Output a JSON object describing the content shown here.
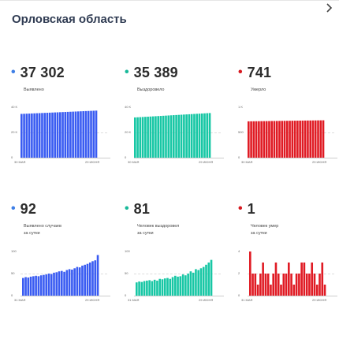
{
  "header": {
    "title": "Орловская область"
  },
  "colors": {
    "blue": "#3a5cf2",
    "teal": "#18c7a5",
    "red": "#e01b24",
    "dot_blue": "#3f7fe6",
    "dot_teal": "#19b99a",
    "dot_red": "#d71920"
  },
  "cards": [
    {
      "value": "37 302",
      "label": "Выявлено",
      "dot": "•",
      "chart_data": {
        "type": "bar",
        "color": "blue",
        "yticks": [
          "40 K",
          "20 K",
          "0"
        ],
        "ylim": [
          0,
          40000
        ],
        "xticks": [
          "30 МАЯ",
          "29 ИЮНЯ"
        ],
        "values_start": 34700,
        "values_end": 37302
      }
    },
    {
      "value": "35 389",
      "label": "Выздоровело",
      "dot": "•",
      "chart_data": {
        "type": "bar",
        "color": "teal",
        "yticks": [
          "40 K",
          "20 K",
          "0"
        ],
        "ylim": [
          0,
          40000
        ],
        "xticks": [
          "30 МАЯ",
          "29 ИЮНЯ"
        ],
        "values_start": 31900,
        "values_end": 35389
      }
    },
    {
      "value": "741",
      "label": "Умерло",
      "dot": "•",
      "chart_data": {
        "type": "bar",
        "color": "red",
        "yticks": [
          "1 K",
          "500",
          "0"
        ],
        "ylim": [
          0,
          1000
        ],
        "xticks": [
          "30 МАЯ",
          "29 ИЮНЯ"
        ],
        "values_start": 720,
        "values_end": 741
      }
    },
    {
      "value": "92",
      "label": "Выявлено случаев\nза сутки",
      "dot": "•",
      "chart_data": {
        "type": "bar",
        "color": "blue",
        "yticks": [
          "100",
          "50",
          "0"
        ],
        "ylim": [
          0,
          100
        ],
        "xticks": [
          "31 МАЯ",
          "29 ИЮНЯ"
        ],
        "values": [
          40,
          42,
          41,
          43,
          44,
          45,
          44,
          46,
          47,
          48,
          50,
          49,
          52,
          53,
          55,
          56,
          54,
          58,
          60,
          59,
          62,
          65,
          64,
          68,
          70,
          72,
          75,
          78,
          80,
          92
        ]
      }
    },
    {
      "value": "81",
      "label": "Человек выздоровел\nза сутки",
      "dot": "•",
      "chart_data": {
        "type": "bar",
        "color": "teal",
        "yticks": [
          "100",
          "50",
          "0"
        ],
        "ylim": [
          0,
          100
        ],
        "xticks": [
          "31 МАЯ",
          "29 ИЮНЯ"
        ],
        "values": [
          30,
          32,
          31,
          33,
          34,
          35,
          33,
          36,
          34,
          38,
          37,
          39,
          40,
          38,
          42,
          45,
          43,
          44,
          48,
          46,
          50,
          55,
          52,
          60,
          58,
          62,
          65,
          70,
          75,
          81
        ]
      }
    },
    {
      "value": "1",
      "label": "Человек умер\nза сутки",
      "dot": "•",
      "chart_data": {
        "type": "bar",
        "color": "red",
        "yticks": [
          "4",
          "2",
          "0"
        ],
        "ylim": [
          0,
          4
        ],
        "xticks": [
          "31 МАЯ",
          "29 ИЮНЯ"
        ],
        "values": [
          4,
          2,
          2,
          1,
          2,
          3,
          2,
          2,
          1,
          2,
          3,
          2,
          1,
          2,
          2,
          3,
          2,
          1,
          2,
          2,
          3,
          3,
          2,
          2,
          3,
          2,
          1,
          2,
          3,
          1
        ]
      }
    }
  ]
}
